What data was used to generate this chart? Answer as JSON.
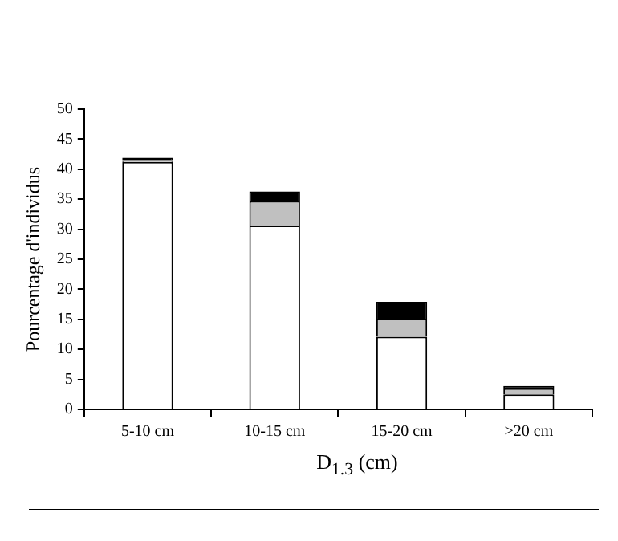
{
  "chart_data": {
    "type": "bar",
    "stacked": true,
    "xlabel": "D$_{1.3}$ (cm)",
    "ylabel": "Pourcentage d'individus",
    "categories": [
      "5-10 cm",
      "10-15 cm",
      "15-20 cm",
      ">20 cm"
    ],
    "series": [
      {
        "color": "#ffffff",
        "values": [
          41.2,
          30.6,
          12.1,
          2.5
        ]
      },
      {
        "color": "#c0c0c0",
        "values": [
          0.3,
          4.1,
          3.0,
          1.0
        ]
      },
      {
        "color": "#000000",
        "values": [
          0.4,
          1.6,
          2.8,
          0.4
        ]
      }
    ],
    "ylim": [
      0,
      50
    ],
    "yticks": [
      0,
      5,
      10,
      15,
      20,
      25,
      30,
      35,
      40,
      45,
      50
    ],
    "grid": false,
    "legend": false
  }
}
